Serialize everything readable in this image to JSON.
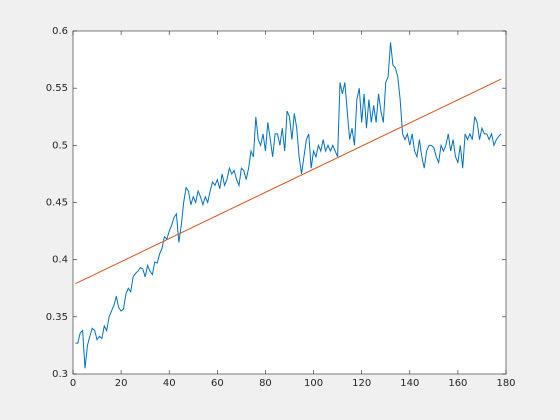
{
  "chart_data": {
    "type": "line",
    "xlim": [
      0,
      180
    ],
    "xticks": [
      0,
      20,
      40,
      60,
      80,
      100,
      120,
      140,
      160,
      180
    ],
    "ylim": [
      0.3,
      0.6
    ],
    "yticks": [
      0.3,
      0.35,
      0.4,
      0.45,
      0.5,
      0.55,
      0.6
    ],
    "series": [
      {
        "color": "#0072bd",
        "x": [
          1,
          2,
          3,
          4,
          5,
          6,
          7,
          8,
          9,
          10,
          11,
          12,
          13,
          14,
          15,
          16,
          17,
          18,
          19,
          20,
          21,
          22,
          23,
          24,
          25,
          26,
          27,
          28,
          29,
          30,
          31,
          32,
          33,
          34,
          35,
          36,
          37,
          38,
          39,
          40,
          41,
          42,
          43,
          44,
          45,
          46,
          47,
          48,
          49,
          50,
          51,
          52,
          53,
          54,
          55,
          56,
          57,
          58,
          59,
          60,
          61,
          62,
          63,
          64,
          65,
          66,
          67,
          68,
          69,
          70,
          71,
          72,
          73,
          74,
          75,
          76,
          77,
          78,
          79,
          80,
          81,
          82,
          83,
          84,
          85,
          86,
          87,
          88,
          89,
          90,
          91,
          92,
          93,
          94,
          95,
          96,
          97,
          98,
          99,
          100,
          101,
          102,
          103,
          104,
          105,
          106,
          107,
          108,
          109,
          110,
          111,
          112,
          113,
          114,
          115,
          116,
          117,
          118,
          119,
          120,
          121,
          122,
          123,
          124,
          125,
          126,
          127,
          128,
          129,
          130,
          131,
          132,
          133,
          134,
          135,
          136,
          137,
          138,
          139,
          140,
          141,
          142,
          143,
          144,
          145,
          146,
          147,
          148,
          149,
          150,
          151,
          152,
          153,
          154,
          155,
          156,
          157,
          158,
          159,
          160,
          161,
          162,
          163,
          164,
          165,
          166,
          167,
          168,
          169,
          170,
          171,
          172,
          173,
          174,
          175,
          176,
          177,
          178
        ],
        "values": [
          0.327,
          0.327,
          0.336,
          0.338,
          0.305,
          0.325,
          0.333,
          0.34,
          0.338,
          0.33,
          0.333,
          0.331,
          0.342,
          0.338,
          0.35,
          0.355,
          0.36,
          0.368,
          0.358,
          0.355,
          0.357,
          0.37,
          0.375,
          0.372,
          0.385,
          0.388,
          0.39,
          0.393,
          0.392,
          0.385,
          0.395,
          0.39,
          0.387,
          0.398,
          0.397,
          0.405,
          0.41,
          0.42,
          0.418,
          0.425,
          0.43,
          0.437,
          0.44,
          0.415,
          0.43,
          0.45,
          0.463,
          0.46,
          0.448,
          0.455,
          0.45,
          0.46,
          0.455,
          0.448,
          0.455,
          0.45,
          0.46,
          0.468,
          0.465,
          0.47,
          0.462,
          0.475,
          0.465,
          0.47,
          0.48,
          0.475,
          0.478,
          0.47,
          0.465,
          0.48,
          0.478,
          0.47,
          0.48,
          0.495,
          0.49,
          0.525,
          0.505,
          0.5,
          0.51,
          0.495,
          0.52,
          0.505,
          0.49,
          0.51,
          0.51,
          0.5,
          0.515,
          0.495,
          0.53,
          0.525,
          0.505,
          0.528,
          0.515,
          0.49,
          0.475,
          0.49,
          0.505,
          0.51,
          0.48,
          0.495,
          0.49,
          0.5,
          0.495,
          0.505,
          0.495,
          0.5,
          0.495,
          0.5,
          0.495,
          0.49,
          0.555,
          0.545,
          0.555,
          0.53,
          0.505,
          0.515,
          0.5,
          0.54,
          0.55,
          0.52,
          0.545,
          0.515,
          0.54,
          0.52,
          0.535,
          0.52,
          0.545,
          0.53,
          0.52,
          0.555,
          0.56,
          0.59,
          0.57,
          0.568,
          0.56,
          0.54,
          0.51,
          0.505,
          0.51,
          0.5,
          0.51,
          0.495,
          0.49,
          0.505,
          0.49,
          0.48,
          0.495,
          0.5,
          0.5,
          0.498,
          0.49,
          0.485,
          0.5,
          0.495,
          0.5,
          0.51,
          0.495,
          0.505,
          0.49,
          0.485,
          0.5,
          0.48,
          0.51,
          0.505,
          0.51,
          0.505,
          0.525,
          0.52,
          0.505,
          0.515,
          0.51,
          0.51,
          0.505,
          0.51,
          0.5,
          0.505,
          0.508,
          0.51
        ]
      },
      {
        "color": "#d95319",
        "x": [
          1,
          178
        ],
        "values": [
          0.379,
          0.558
        ]
      }
    ]
  }
}
